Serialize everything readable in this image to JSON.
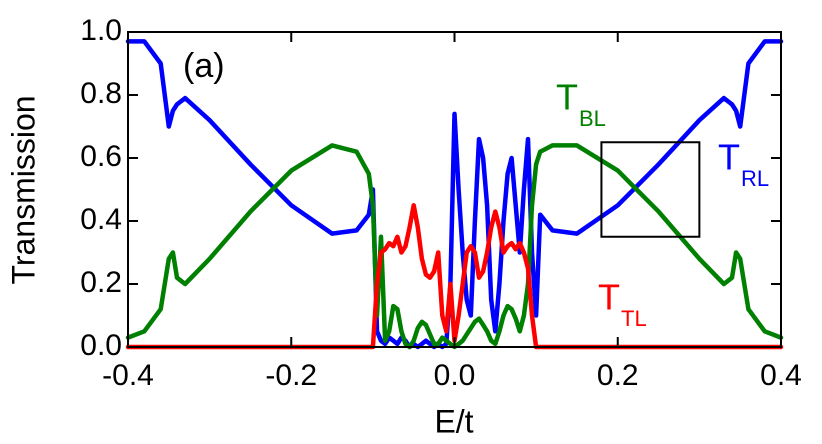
{
  "chart_data": {
    "type": "line",
    "panel_label": "(a)",
    "x_label": "E/t",
    "y_label": "Transmission",
    "x": [
      -0.4,
      -0.38,
      -0.36,
      -0.35,
      -0.345,
      -0.34,
      -0.33,
      -0.3,
      -0.25,
      -0.2,
      -0.15,
      -0.12,
      -0.105,
      -0.1,
      -0.095,
      -0.09,
      -0.085,
      -0.08,
      -0.075,
      -0.07,
      -0.065,
      -0.06,
      -0.055,
      -0.05,
      -0.045,
      -0.04,
      -0.035,
      -0.03,
      -0.025,
      -0.02,
      -0.015,
      -0.01,
      -0.005,
      0,
      0.005,
      0.01,
      0.015,
      0.02,
      0.025,
      0.03,
      0.035,
      0.04,
      0.045,
      0.05,
      0.055,
      0.06,
      0.065,
      0.07,
      0.075,
      0.08,
      0.085,
      0.09,
      0.095,
      0.1,
      0.105,
      0.12,
      0.15,
      0.2,
      0.25,
      0.3,
      0.33,
      0.34,
      0.345,
      0.35,
      0.36,
      0.38,
      0.4
    ],
    "series": [
      {
        "name": "T",
        "subscript": "RL",
        "color": "#0000ff",
        "values": [
          0.97,
          0.97,
          0.9,
          0.7,
          0.75,
          0.77,
          0.79,
          0.72,
          0.58,
          0.45,
          0.36,
          0.37,
          0.42,
          0.5,
          0.05,
          0.02,
          0.01,
          0.03,
          0.02,
          0.01,
          0.03,
          0.02,
          0,
          0.01,
          0,
          0.01,
          0.02,
          0.01,
          0,
          0.01,
          0,
          0.01,
          0.2,
          0.74,
          0.5,
          0.3,
          0.15,
          0.1,
          0.4,
          0.66,
          0.6,
          0.45,
          0.15,
          0.05,
          0.2,
          0.4,
          0.55,
          0.6,
          0.45,
          0.3,
          0.5,
          0.66,
          0.3,
          0.1,
          0.42,
          0.37,
          0.36,
          0.45,
          0.58,
          0.72,
          0.79,
          0.77,
          0.75,
          0.7,
          0.9,
          0.97,
          0.97
        ]
      },
      {
        "name": "T",
        "subscript": "BL",
        "color": "#008000",
        "values": [
          0.03,
          0.05,
          0.12,
          0.28,
          0.3,
          0.22,
          0.2,
          0.28,
          0.43,
          0.56,
          0.64,
          0.62,
          0.55,
          0.45,
          0.1,
          0.35,
          0.02,
          0.05,
          0.13,
          0.12,
          0.05,
          0.01,
          0,
          0.02,
          0.06,
          0.08,
          0.07,
          0.04,
          0.01,
          0.01,
          0.03,
          0.02,
          0.01,
          0,
          0.01,
          0.02,
          0.04,
          0.06,
          0.08,
          0.09,
          0.07,
          0.05,
          0.02,
          0.01,
          0.05,
          0.1,
          0.13,
          0.12,
          0.09,
          0.05,
          0.1,
          0.2,
          0.45,
          0.58,
          0.62,
          0.64,
          0.64,
          0.56,
          0.43,
          0.28,
          0.2,
          0.22,
          0.3,
          0.28,
          0.12,
          0.05,
          0.03
        ]
      },
      {
        "name": "T",
        "subscript": "TL",
        "color": "#ff0000",
        "values": [
          0,
          0,
          0,
          0,
          0,
          0,
          0,
          0,
          0,
          0,
          0,
          0,
          0,
          0,
          0.2,
          0.3,
          0.31,
          0.33,
          0.32,
          0.35,
          0.3,
          0.32,
          0.38,
          0.45,
          0.38,
          0.28,
          0.23,
          0.22,
          0.24,
          0.3,
          0.1,
          0.05,
          0.2,
          0.02,
          0.1,
          0.2,
          0.3,
          0.32,
          0.3,
          0.22,
          0.24,
          0.3,
          0.38,
          0.43,
          0.38,
          0.3,
          0.32,
          0.33,
          0.31,
          0.33,
          0.3,
          0.25,
          0.1,
          0,
          0,
          0,
          0,
          0,
          0,
          0,
          0,
          0,
          0,
          0,
          0,
          0,
          0
        ]
      }
    ],
    "xlim": [
      -0.4,
      0.4
    ],
    "ylim": [
      0,
      1
    ],
    "xticks": [
      -0.4,
      -0.2,
      {
        "value": 0,
        "label": "0.0"
      },
      0.2,
      0.4
    ],
    "yticks": [
      {
        "value": 0,
        "label": "0.0"
      },
      0.2,
      0.4,
      0.6,
      0.8,
      {
        "value": 1,
        "label": "1.0"
      }
    ],
    "box": {
      "x": [
        0.18,
        0.3
      ],
      "y": [
        0.35,
        0.65
      ]
    }
  }
}
